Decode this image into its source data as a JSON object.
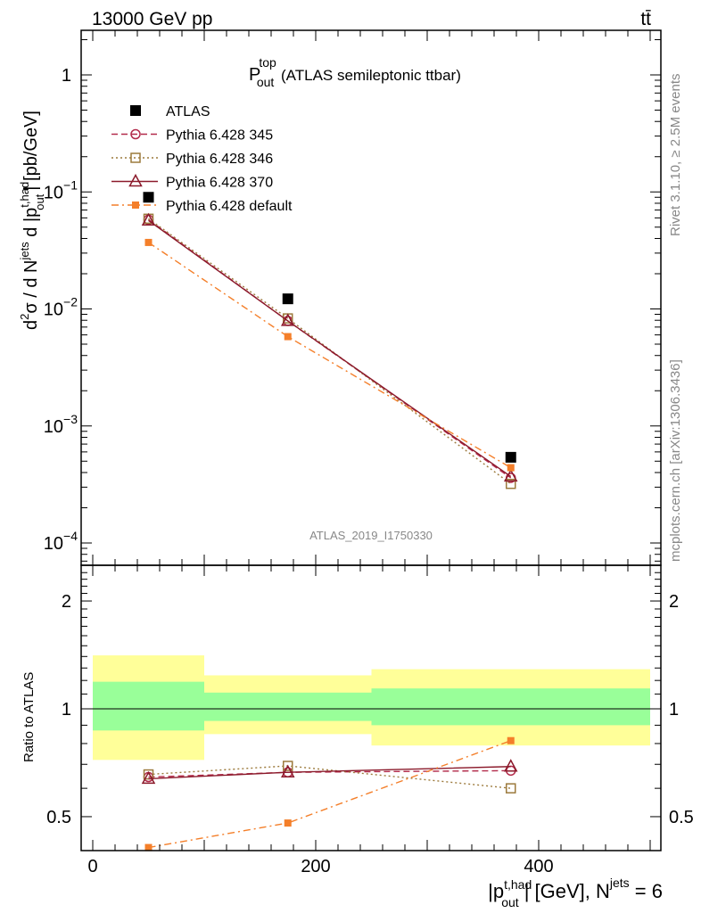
{
  "header": {
    "left": "13000 GeV pp",
    "right": "tt̄"
  },
  "side_texts": {
    "rivet": "Rivet 3.1.10, ≥ 2.5M events",
    "source": "mcplots.cern.ch [arXiv:1306.3436]"
  },
  "analysis_id": "ATLAS_2019_I1750330",
  "plot_title": {
    "main": "P",
    "sup": "top",
    "sub": "out",
    "rest": " (ATLAS semileptonic ttbar)"
  },
  "top_axis": {
    "ylabel_parts": {
      "prefix": "d",
      "sup2": "2",
      "sigma": "σ / d N",
      "sup_jets": "jets",
      "mid": " d |p",
      "sup_had": "t,had",
      "sub_out": "out",
      "suffix": "| [pb/GeV]"
    },
    "ytick_labels": [
      {
        "mant": "1",
        "exp": ""
      },
      {
        "mant": "10",
        "exp": "−1"
      },
      {
        "mant": "10",
        "exp": "−2"
      },
      {
        "mant": "10",
        "exp": "−3"
      },
      {
        "mant": "10",
        "exp": "−4"
      }
    ]
  },
  "ratio_axis": {
    "ylabel": "Ratio to ATLAS",
    "ytick_labels": [
      "2",
      "1",
      "0.5"
    ]
  },
  "x_axis": {
    "tick_labels": [
      "0",
      "200",
      "400"
    ],
    "label_parts": {
      "pre": "|p",
      "sup": "t,had",
      "sub": "out",
      "mid": "| [GeV], N",
      "sup2": "jets",
      "post": " = 6"
    }
  },
  "legend": [
    {
      "label": "ATLAS",
      "color": "#000000",
      "marker": "filled-square",
      "dash": "none"
    },
    {
      "label": "Pythia 6.428 345",
      "color": "#b22a4a",
      "marker": "open-circle",
      "dash": "dashed"
    },
    {
      "label": "Pythia 6.428 346",
      "color": "#9c7a3c",
      "marker": "open-square",
      "dash": "dotted"
    },
    {
      "label": "Pythia 6.428 370",
      "color": "#8b1a2b",
      "marker": "open-triangle",
      "dash": "solid"
    },
    {
      "label": "Pythia 6.428 default",
      "color": "#f47f2a",
      "marker": "filled-square-small",
      "dash": "dashdot"
    }
  ],
  "chart_data": [
    {
      "type": "scatter",
      "title": "P_out^top (ATLAS semileptonic ttbar)",
      "xlabel": "|p_out^t,had| [GeV], N^jets = 6",
      "ylabel": "d²σ / d N^jets d |p_out^t,had| [pb/GeV]",
      "yscale": "log",
      "xlim": [
        -20,
        510
      ],
      "ylim": [
        7e-05,
        2.2
      ],
      "bins": [
        [
          0,
          100
        ],
        [
          100,
          250
        ],
        [
          250,
          500
        ]
      ],
      "x": [
        50,
        175,
        375
      ],
      "series": [
        {
          "name": "ATLAS",
          "values": [
            0.09,
            0.0122,
            0.00054
          ]
        },
        {
          "name": "Pythia 6.428 345",
          "values": [
            0.058,
            0.0079,
            0.00036
          ]
        },
        {
          "name": "Pythia 6.428 346",
          "values": [
            0.059,
            0.0083,
            0.00032
          ]
        },
        {
          "name": "Pythia 6.428 370",
          "values": [
            0.057,
            0.0079,
            0.00037
          ]
        },
        {
          "name": "Pythia 6.428 default",
          "values": [
            0.037,
            0.0058,
            0.00044
          ]
        }
      ]
    },
    {
      "type": "line",
      "title": "",
      "xlabel": "|p_out^t,had| [GeV], N^jets = 6",
      "ylabel": "Ratio to ATLAS",
      "yscale": "log",
      "xlim": [
        -20,
        510
      ],
      "ylim": [
        0.415,
        2.5
      ],
      "x": [
        50,
        175,
        375
      ],
      "uncertainty_bands": [
        {
          "xmin": 0,
          "xmax": 100,
          "inner": [
            0.87,
            1.19
          ],
          "outer": [
            0.72,
            1.41
          ]
        },
        {
          "xmin": 100,
          "xmax": 250,
          "inner": [
            0.925,
            1.11
          ],
          "outer": [
            0.85,
            1.24
          ]
        },
        {
          "xmin": 250,
          "xmax": 500,
          "inner": [
            0.9,
            1.14
          ],
          "outer": [
            0.79,
            1.29
          ]
        }
      ],
      "series": [
        {
          "name": "Pythia 6.428 345",
          "values": [
            0.645,
            0.665,
            0.672
          ]
        },
        {
          "name": "Pythia 6.428 346",
          "values": [
            0.656,
            0.693,
            0.6
          ]
        },
        {
          "name": "Pythia 6.428 370",
          "values": [
            0.638,
            0.665,
            0.69
          ]
        },
        {
          "name": "Pythia 6.428 default",
          "values": [
            0.41,
            0.48,
            0.815
          ]
        }
      ]
    }
  ]
}
